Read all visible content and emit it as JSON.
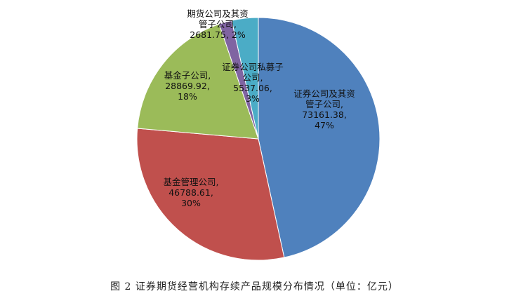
{
  "chart_data": {
    "type": "pie",
    "categories": [
      "证券公司及其资管子公司",
      "基金管理公司",
      "基金子公司",
      "期货公司及其资管子公司",
      "证券公司私募子公司"
    ],
    "values": [
      73161.38,
      46788.61,
      28869.92,
      2681.75,
      5537.06
    ],
    "value_labels": [
      "73161.38, 47%",
      "46788.61, 30%",
      "28869.92, 18%",
      "2681.75, 2%",
      "5537.06, 3%"
    ],
    "colors": [
      "#4f81bd",
      "#c0504d",
      "#9bbb59",
      "#8064a2",
      "#4bacc6"
    ],
    "caption": "图 2  证券期货经营机构存续产品规模分布情况（单位：亿元）"
  }
}
